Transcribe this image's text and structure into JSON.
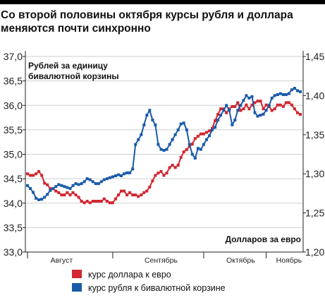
{
  "title_lines": [
    "Со второй половины октября курсы рубля и доллара",
    "меняются почти синхронно"
  ],
  "chart_data": {
    "type": "line",
    "title": "Со второй половины октября курсы рубля и доллара меняются почти синхронно",
    "left_axis": {
      "label_lines": [
        "Рублей за единицу",
        "бивалютной корзины"
      ],
      "range": [
        33.0,
        37.0
      ],
      "ticks": [
        "33,0",
        "33,5",
        "34,0",
        "34,5",
        "35,0",
        "35,5",
        "36,0",
        "36,5",
        "37,0"
      ],
      "tick_values": [
        33.0,
        33.5,
        34.0,
        34.5,
        35.0,
        35.5,
        36.0,
        36.5,
        37.0
      ]
    },
    "right_axis": {
      "label": "Долларов за евро",
      "range": [
        1.2,
        1.45
      ],
      "ticks": [
        "1,20",
        "1,25",
        "1,30",
        "1,35",
        "1,40",
        "1,45"
      ],
      "tick_values": [
        1.2,
        1.25,
        1.3,
        1.35,
        1.4,
        1.45
      ]
    },
    "x_axis": {
      "months": [
        "Август",
        "Сентябрь",
        "Октябрь",
        "Ноябрь"
      ],
      "month_start_index": [
        0,
        30,
        62,
        84
      ],
      "month_label_center_index": [
        12,
        47,
        75,
        92
      ],
      "count": 97
    },
    "grid": true,
    "legend_position": "bottom",
    "series": [
      {
        "name": "курс доллара к евро",
        "axis": "right",
        "color": "#d22630",
        "values": [
          1.3,
          1.298,
          1.298,
          1.3,
          1.303,
          1.298,
          1.288,
          1.286,
          1.281,
          1.281,
          1.278,
          1.276,
          1.273,
          1.273,
          1.276,
          1.273,
          1.276,
          1.273,
          1.27,
          1.265,
          1.263,
          1.265,
          1.263,
          1.265,
          1.265,
          1.265,
          1.265,
          1.268,
          1.265,
          1.263,
          1.263,
          1.268,
          1.273,
          1.278,
          1.278,
          1.273,
          1.276,
          1.273,
          1.273,
          1.271,
          1.273,
          1.276,
          1.278,
          1.283,
          1.291,
          1.298,
          1.301,
          1.303,
          1.298,
          1.301,
          1.308,
          1.311,
          1.308,
          1.311,
          1.321,
          1.328,
          1.331,
          1.335,
          1.338,
          1.345,
          1.348,
          1.351,
          1.351,
          1.353,
          1.355,
          1.358,
          1.368,
          1.376,
          1.383,
          1.383,
          1.378,
          1.383,
          1.386,
          1.386,
          1.391,
          1.381,
          1.383,
          1.388,
          1.383,
          1.388,
          1.391,
          1.393,
          1.393,
          1.383,
          1.388,
          1.386,
          1.381,
          1.383,
          1.388,
          1.388,
          1.386,
          1.391,
          1.391,
          1.388,
          1.383,
          1.378,
          1.376
        ]
      },
      {
        "name": "курс рубля к бивалютной корзине",
        "axis": "left",
        "color": "#1a5aa8",
        "values": [
          34.36,
          34.3,
          34.22,
          34.1,
          34.07,
          34.08,
          34.12,
          34.18,
          34.26,
          34.3,
          34.34,
          34.38,
          34.36,
          34.34,
          34.32,
          34.3,
          34.36,
          34.4,
          34.38,
          34.4,
          34.44,
          34.5,
          34.48,
          34.44,
          34.4,
          34.4,
          34.44,
          34.48,
          34.5,
          34.52,
          34.54,
          34.56,
          34.58,
          34.56,
          34.6,
          34.62,
          34.62,
          34.7,
          35.2,
          35.3,
          35.4,
          35.6,
          35.8,
          35.9,
          35.7,
          35.6,
          35.2,
          35.1,
          35.08,
          35.1,
          35.2,
          35.3,
          35.4,
          35.5,
          35.62,
          35.64,
          35.5,
          35.2,
          35.0,
          34.92,
          35.12,
          35.1,
          35.2,
          35.3,
          35.38,
          35.5,
          35.55,
          35.7,
          35.8,
          35.9,
          36.0,
          35.9,
          35.6,
          35.7,
          35.9,
          36.0,
          36.1,
          36.2,
          36.15,
          36.18,
          35.85,
          35.78,
          35.8,
          35.82,
          35.9,
          36.0,
          36.15,
          36.2,
          36.22,
          36.24,
          36.22,
          36.22,
          36.24,
          36.32,
          36.35,
          36.3,
          36.28
        ]
      }
    ]
  },
  "legend": [
    {
      "label": "курс доллара к евро",
      "color": "#d22630"
    },
    {
      "label": "курс рубля к бивалютной корзине",
      "color": "#1a5aa8"
    }
  ]
}
